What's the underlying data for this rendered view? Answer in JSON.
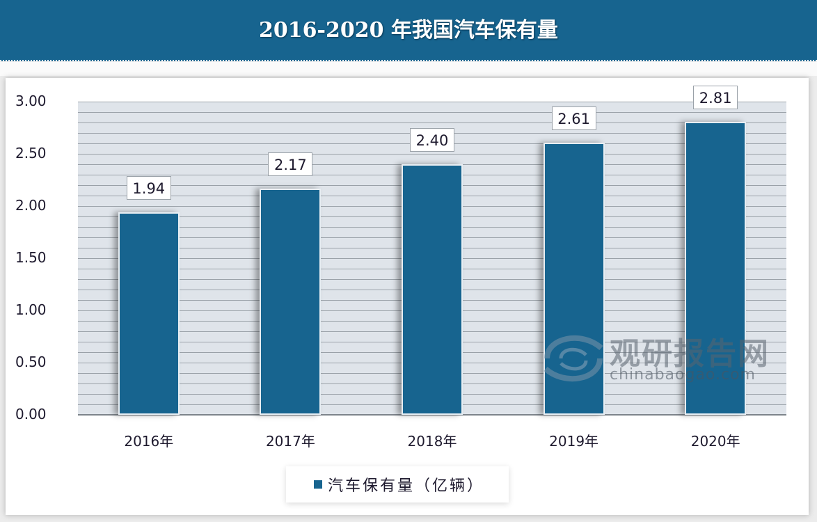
{
  "header": {
    "title": "2016-2020 年我国汽车保有量"
  },
  "chart_data": {
    "type": "bar",
    "title": "2016-2020 年我国汽车保有量",
    "categories": [
      "2016年",
      "2017年",
      "2018年",
      "2019年",
      "2020年"
    ],
    "series": [
      {
        "name": "汽车保有量（亿辆）",
        "values": [
          1.94,
          2.17,
          2.4,
          2.61,
          2.81
        ],
        "color": "#17648f"
      }
    ],
    "data_labels": [
      "1.94",
      "2.17",
      "2.40",
      "2.61",
      "2.81"
    ],
    "xlabel": "",
    "ylabel": "",
    "ylim": [
      0,
      3.0
    ],
    "yticks": [
      "0.00",
      "0.50",
      "1.00",
      "1.50",
      "2.00",
      "2.50",
      "3.00"
    ],
    "grid": true,
    "legend_position": "bottom"
  },
  "legend": {
    "label": "汽车保有量（亿辆）"
  },
  "watermark": {
    "cn": "观研报告网",
    "en": "chinabaogao.com"
  }
}
